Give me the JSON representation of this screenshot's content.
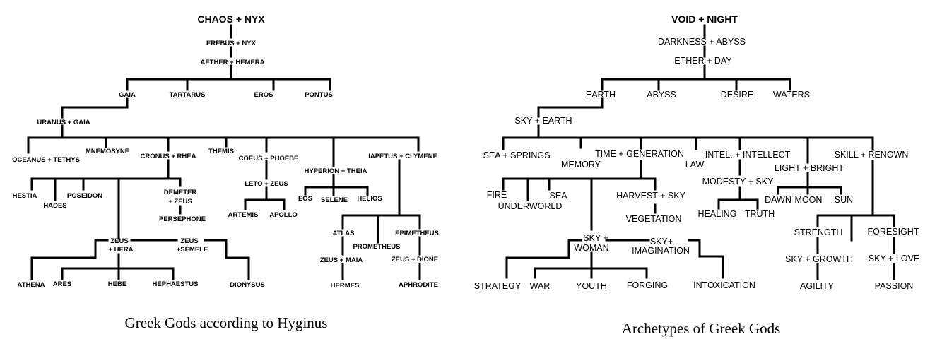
{
  "line_color": "#000000",
  "background": "#ffffff",
  "left_tree": {
    "caption": "Greek Gods according to Hyginus",
    "nodes": {
      "chaos_nyx": "CHAOS + NYX",
      "erebus_nyx": "EREBUS + NYX",
      "aether_hemera": "AETHER + HEMERA",
      "gaia": "GAIA",
      "tartarus": "TARTARUS",
      "eros": "EROS",
      "pontus": "PONTUS",
      "uranus_gaia": "URANUS + GAIA",
      "oceanus_tethys": "OCEANUS + TETHYS",
      "mnemosyne": "MNEMOSYNE",
      "cronus_rhea": "CRONUS + RHEA",
      "themis": "THEMIS",
      "coeus_phoebe": "COEUS + PHOEBE",
      "hyperion_theia": "HYPERION + THEIA",
      "iapetus_clymene": "IAPETUS + CLYMENE",
      "hestia": "HESTIA",
      "hades": "HADES",
      "poseidon": "POSEIDON",
      "demeter_zeus_1": "DEMETER",
      "demeter_zeus_2": "+ ZEUS",
      "persephone": "PERSEPHONE",
      "leto_zeus": "LETO + ZEUS",
      "artemis": "ARTEMIS",
      "apollo": "APOLLO",
      "eos": "EOS",
      "selene": "SELENE",
      "helios": "HELIOS",
      "zeus_hera_1": "ZEUS",
      "zeus_hera_2": "+ HERA",
      "zeus_semele_1": "ZEUS",
      "zeus_semele_2": "+SEMELE",
      "atlas": "ATLAS",
      "prometheus": "PROMETHEUS",
      "epimetheus": "EPIMETHEUS",
      "zeus_maia": "ZEUS + MAIA",
      "zeus_dione": "ZEUS + DIONE",
      "athena": "ATHENA",
      "ares": "ARES",
      "hebe": "HEBE",
      "hephaestus": "HEPHAESTUS",
      "dionysus": "DIONYSUS",
      "hermes": "HERMES",
      "aphrodite": "APHRODITE"
    }
  },
  "right_tree": {
    "caption": "Archetypes of Greek Gods",
    "nodes": {
      "void_night": "VOID + NIGHT",
      "darkness_abyss": "DARKNESS + ABYSS",
      "ether_day": "ETHER + DAY",
      "earth": "EARTH",
      "abyss": "ABYSS",
      "desire": "DESIRE",
      "waters": "WATERS",
      "sky_earth": "SKY + EARTH",
      "sea_springs": "SEA + SPRINGS",
      "memory": "MEMORY",
      "time_generation": "TIME + GENERATION",
      "law": "LAW",
      "intel_intellect": "INTEL. + INTELLECT",
      "light_bright": "LIGHT + BRIGHT",
      "skill_renown": "SKILL + RENOWN",
      "fire": "FIRE",
      "underworld": "UNDERWORLD",
      "sea": "SEA",
      "harvest_sky": "HARVEST + SKY",
      "vegetation": "VEGETATION",
      "modesty_sky": "MODESTY + SKY",
      "healing": "HEALING",
      "truth": "TRUTH",
      "dawn": "DAWN",
      "moon": "MOON",
      "sun": "SUN",
      "sky_woman_1": "SKY +",
      "sky_woman_2": "WOMAN",
      "sky_imagination_1": "SKY+",
      "sky_imagination_2": "IMAGINATION",
      "strength": "STRENGTH",
      "foresight": "FORESIGHT",
      "sky_growth": "SKY + GROWTH",
      "sky_love": "SKY + LOVE",
      "strategy": "STRATEGY",
      "war": "WAR",
      "youth": "YOUTH",
      "forging": "FORGING",
      "intoxication": "INTOXICATION",
      "agility": "AGILITY",
      "passion": "PASSION"
    }
  }
}
